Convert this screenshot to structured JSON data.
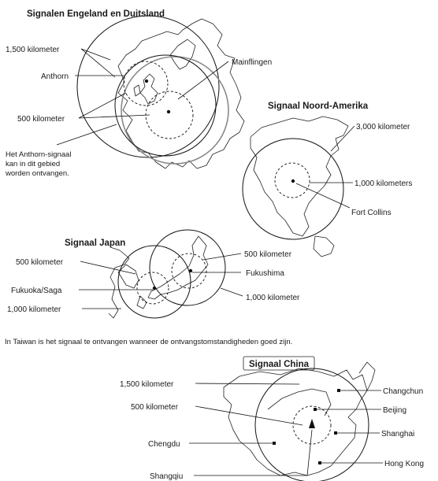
{
  "europe": {
    "title": "Signalen Engeland en Duitsland",
    "label_1500": "1,500 kilometer",
    "label_anthorn": "Anthorn",
    "label_mainflingen": "Mainflingen",
    "label_500": "500 kilometer",
    "note_line1": "Het Anthorn-signaal",
    "note_line2": "kan in dit gebied",
    "note_line3": "worden ontvangen."
  },
  "america": {
    "title": "Signaal Noord-Amerika",
    "label_3000": "3,000 kilometer",
    "label_1000": "1,000 kilometers",
    "label_fortcollins": "Fort Collins"
  },
  "japan": {
    "title": "Signaal Japan",
    "label_500_left": "500 kilometer",
    "label_500_right": "500 kilometer",
    "label_fukuoka": "Fukuoka/Saga",
    "label_fukushima": "Fukushima",
    "label_1000_left": "1,000 kilometer",
    "label_1000_right": "1,000 kilometer"
  },
  "taiwan_note": "In Taiwan is het signaal te ontvangen wanneer de ontvangstomstandigheden goed zijn.",
  "china": {
    "title": "Signaal China",
    "label_1500": "1,500 kilometer",
    "label_500": "500 kilometer",
    "label_chengdu": "Chengdu",
    "label_shangqiu": "Shangqiu",
    "label_changchun": "Changchun",
    "label_beijing": "Beijing",
    "label_shanghai": "Shanghai",
    "label_hongkong": "Hong Kong"
  }
}
